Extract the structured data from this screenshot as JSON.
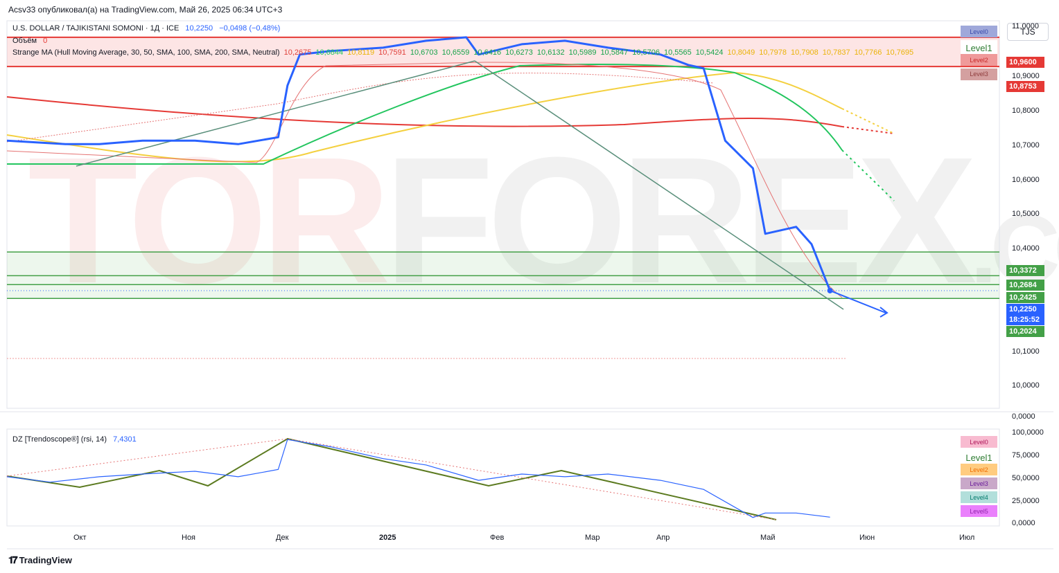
{
  "caption": "Acsv33 опубликовал(а) на TradingView.com, Май 26, 2025 06:34 UTC+3",
  "symbol": {
    "name": "U.S. DOLLAR / TAJIKISTANI SOMONI · 1Д · ICE",
    "price": "10,2250",
    "change": "−0,0498 (−0,48%)"
  },
  "volume": {
    "label": "Объём",
    "value": "0"
  },
  "ma": {
    "label": "Strange MA (Hull Moving Average, 30, 50, SMA, 100, SMA, 200, SMA, Neutral)",
    "values": [
      {
        "v": "10,2675",
        "c": "#e0403a"
      },
      {
        "v": "10,6844",
        "c": "#22c55e"
      },
      {
        "v": "10,8119",
        "c": "#eab308"
      },
      {
        "v": "10,7591",
        "c": "#e0403a"
      },
      {
        "v": "10,6703",
        "c": "#16a34a"
      },
      {
        "v": "10,6559",
        "c": "#16a34a"
      },
      {
        "v": "10,6416",
        "c": "#16a34a"
      },
      {
        "v": "10,6273",
        "c": "#16a34a"
      },
      {
        "v": "10,6132",
        "c": "#16a34a"
      },
      {
        "v": "10,5989",
        "c": "#16a34a"
      },
      {
        "v": "10,5847",
        "c": "#16a34a"
      },
      {
        "v": "10,5706",
        "c": "#16a34a"
      },
      {
        "v": "10,5565",
        "c": "#16a34a"
      },
      {
        "v": "10,5424",
        "c": "#16a34a"
      },
      {
        "v": "10,8049",
        "c": "#eab308"
      },
      {
        "v": "10,7978",
        "c": "#eab308"
      },
      {
        "v": "10,7908",
        "c": "#eab308"
      },
      {
        "v": "10,7837",
        "c": "#eab308"
      },
      {
        "v": "10,7766",
        "c": "#eab308"
      },
      {
        "v": "10,7695",
        "c": "#eab308"
      }
    ]
  },
  "currency_button": "TJS",
  "brand": "TradingView",
  "watermark": {
    "a": "TOR",
    "b": "FOREX",
    "c": ".COM"
  },
  "level_boxes_main": [
    {
      "label": "Level0",
      "bg": "#9fa8da",
      "fg": "#3949ab"
    },
    {
      "label": "Level1",
      "bg": "#ffffff",
      "fg": "#2e7d32"
    },
    {
      "label": "Level2",
      "bg": "#ef9a9a",
      "fg": "#c62828"
    },
    {
      "label": "Level3",
      "bg": "#d4a0a0",
      "fg": "#8e3b3b"
    }
  ],
  "level_boxes_rsi": [
    {
      "label": "Level0",
      "bg": "#f8bbd0",
      "fg": "#ad1457"
    },
    {
      "label": "Level1",
      "bg": "#ffffff",
      "fg": "#2e7d32"
    },
    {
      "label": "Level2",
      "bg": "#ffcc80",
      "fg": "#ef6c00"
    },
    {
      "label": "Level3",
      "bg": "#c9a8c9",
      "fg": "#6a1b9a"
    },
    {
      "label": "Level4",
      "bg": "#b2dfdb",
      "fg": "#00796b"
    },
    {
      "label": "Level5",
      "bg": "#ea80fc",
      "fg": "#8e24aa"
    }
  ],
  "price_tags": [
    {
      "text": "10,9600",
      "bg": "#e53935"
    },
    {
      "text": "10,8753",
      "bg": "#e53935"
    },
    {
      "text": "10,3372",
      "bg": "#43a047"
    },
    {
      "text": "10,2684",
      "bg": "#43a047"
    },
    {
      "text": "10,2425",
      "bg": "#43a047"
    },
    {
      "text": "10,2250",
      "bg": "#2962ff"
    },
    {
      "text": "18:25:52",
      "bg": "#2962ff"
    },
    {
      "text": "10,2024",
      "bg": "#43a047"
    }
  ],
  "rsi": {
    "label": "DZ [Trendoscope®] (rsi, 14)",
    "value": "7,4301"
  },
  "chart_data": [
    {
      "type": "line",
      "title": "U.S. DOLLAR / TAJIKISTANI SOMONI · 1Д · ICE",
      "ylim": [
        10.0,
        11.0
      ],
      "y_ticks": [
        "11,0000",
        "10,9000",
        "10,8000",
        "10,7000",
        "10,6000",
        "10,5000",
        "10,4000",
        "10,1000",
        "10,0000",
        "0,0000"
      ],
      "x_ticks": [
        "Окт",
        "Ноя",
        "Дек",
        "2025",
        "Фев",
        "Мар",
        "Апр",
        "Май",
        "Июн",
        "Июл"
      ],
      "horizontal_levels": [
        10.96,
        10.8753,
        10.3372,
        10.2684,
        10.2425,
        10.2024
      ],
      "series": [
        {
          "name": "",
          "color": "#2962ff",
          "x": [
            "2024-09-01",
            "2024-09-20",
            "2024-10-01",
            "2024-10-15",
            "2024-11-01",
            "2024-11-15",
            "2024-11-28",
            "2024-12-01",
            "2024-12-05",
            "2024-12-15",
            "2025-01-01",
            "2025-01-15",
            "2025-01-28",
            "2025-02-01",
            "2025-02-15",
            "2025-03-01",
            "2025-03-15",
            "2025-04-01",
            "2025-04-10",
            "2025-04-15",
            "2025-04-22",
            "2025-05-01",
            "2025-05-05",
            "2025-05-15",
            "2025-05-20",
            "2025-05-26"
          ],
          "values": [
            10.66,
            10.65,
            10.65,
            10.66,
            10.66,
            10.65,
            10.67,
            10.82,
            10.91,
            10.92,
            10.93,
            10.95,
            10.96,
            10.91,
            10.94,
            10.95,
            10.93,
            10.91,
            10.88,
            10.87,
            10.66,
            10.58,
            10.39,
            10.41,
            10.36,
            10.225
          ]
        }
      ]
    },
    {
      "type": "line",
      "title": "DZ [Trendoscope®] (rsi, 14)",
      "ylim": [
        0,
        100
      ],
      "y_ticks": [
        "100,0000",
        "75,0000",
        "50,0000",
        "25,0000",
        "0,0000"
      ],
      "series": [
        {
          "name": "",
          "color": "#2962ff",
          "x": [
            "2024-09-01",
            "2024-09-15",
            "2024-10-01",
            "2024-10-15",
            "2024-11-01",
            "2024-11-15",
            "2024-11-28",
            "2024-12-01",
            "2024-12-15",
            "2025-01-01",
            "2025-01-15",
            "2025-02-01",
            "2025-02-15",
            "2025-03-01",
            "2025-03-15",
            "2025-04-01",
            "2025-04-15",
            "2025-05-01",
            "2025-05-05",
            "2025-05-15",
            "2025-05-26"
          ],
          "values": [
            52,
            46,
            52,
            55,
            58,
            52,
            60,
            93,
            85,
            72,
            65,
            48,
            55,
            52,
            55,
            48,
            38,
            7,
            12,
            12,
            7.4301
          ]
        }
      ]
    }
  ]
}
